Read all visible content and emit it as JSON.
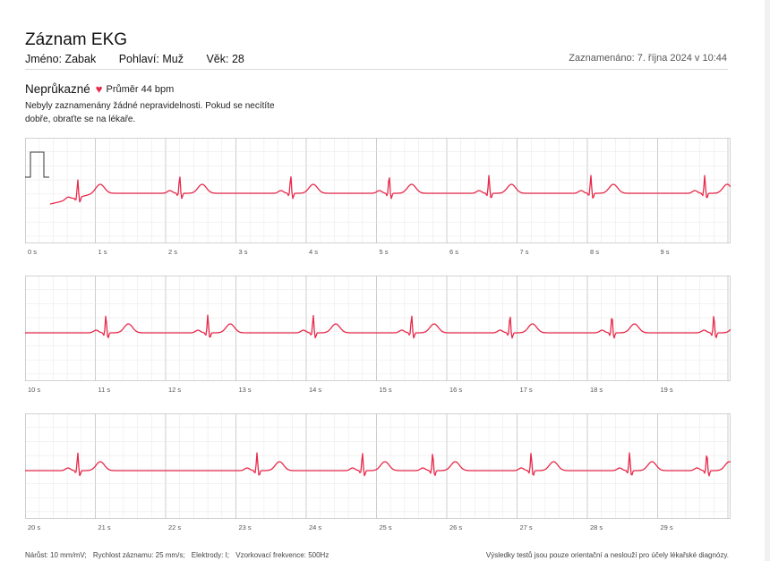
{
  "header": {
    "title": "Záznam EKG",
    "name_label": "Jméno: Zabak",
    "sex_label": "Pohlaví: Muž",
    "age_label": "Věk: 28",
    "recorded": "Zaznamenáno: 7. října 2024 v 10:44"
  },
  "result": {
    "status": "Neprůkazné",
    "average": "Průměr 44 bpm",
    "note": "Nebyly zaznamenány žádné nepravidelnosti. Pokud se necítíte dobře, obraťte se na lékaře."
  },
  "strips": [
    {
      "labels": [
        "0 s",
        "1 s",
        "2 s",
        "3 s",
        "4 s",
        "5 s",
        "6 s",
        "7 s",
        "8 s",
        "9 s"
      ]
    },
    {
      "labels": [
        "10 s",
        "11 s",
        "12 s",
        "13 s",
        "14 s",
        "15 s",
        "16 s",
        "17 s",
        "18 s",
        "19 s"
      ]
    },
    {
      "labels": [
        "20 s",
        "21 s",
        "22 s",
        "23 s",
        "24 s",
        "25 s",
        "26 s",
        "27 s",
        "28 s",
        "29 s"
      ]
    }
  ],
  "ekg": {
    "beat_times": [
      [
        0.75,
        2.2,
        3.78,
        5.18,
        6.6,
        8.05,
        9.67
      ],
      [
        1.15,
        2.6,
        4.1,
        5.5,
        6.9,
        8.35,
        9.8
      ],
      [
        0.75,
        3.3,
        4.8,
        5.8,
        7.2,
        8.6,
        9.7
      ]
    ],
    "color": "#e8294a",
    "grid_color": "#e6e6e6",
    "grid_major_color": "#c8c8c8"
  },
  "footer": {
    "gain": "Nárůst: 10 mm/mV;",
    "speed": "Rychlost záznamu: 25 mm/s;",
    "electrodes": "Elektrody: I;",
    "sampling": "Vzorkovací frekvence: 500Hz",
    "disclaimer": "Výsledky testů jsou pouze orientační a neslouží pro účely lékařské diagnózy."
  }
}
